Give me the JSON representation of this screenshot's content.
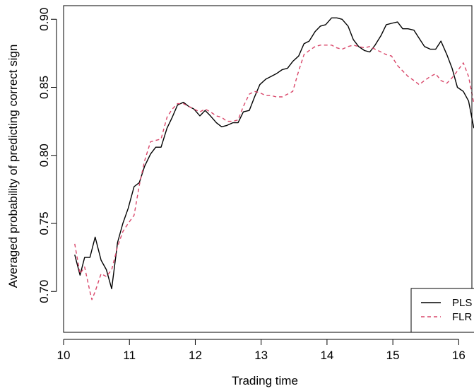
{
  "chart_data": {
    "type": "line",
    "xlabel": "Trading time",
    "ylabel": "Averaged probability of predicting correct sign",
    "xlim": [
      10,
      16.2
    ],
    "ylim": [
      0.67,
      0.91
    ],
    "xticks": [
      10,
      11,
      12,
      13,
      14,
      15,
      16
    ],
    "xtick_labels": [
      "10",
      "11",
      "12",
      "13",
      "14",
      "15",
      "16"
    ],
    "yticks": [
      0.7,
      0.75,
      0.8,
      0.85,
      0.9
    ],
    "ytick_labels": [
      "0.70",
      "0.75",
      "0.80",
      "0.85",
      "0.90"
    ],
    "legend": {
      "placement": "bottom-right"
    },
    "series": [
      {
        "name": "PLS",
        "color": "#000000",
        "dash": "solid",
        "points": [
          [
            10.17,
            0.727
          ],
          [
            10.25,
            0.712
          ],
          [
            10.32,
            0.725
          ],
          [
            10.4,
            0.725
          ],
          [
            10.48,
            0.74
          ],
          [
            10.57,
            0.723
          ],
          [
            10.65,
            0.716
          ],
          [
            10.73,
            0.702
          ],
          [
            10.82,
            0.736
          ],
          [
            10.9,
            0.75
          ],
          [
            10.98,
            0.761
          ],
          [
            11.07,
            0.777
          ],
          [
            11.15,
            0.78
          ],
          [
            11.23,
            0.792
          ],
          [
            11.32,
            0.801
          ],
          [
            11.4,
            0.806
          ],
          [
            11.48,
            0.806
          ],
          [
            11.57,
            0.82
          ],
          [
            11.65,
            0.828
          ],
          [
            11.73,
            0.837
          ],
          [
            11.82,
            0.839
          ],
          [
            11.9,
            0.836
          ],
          [
            11.98,
            0.834
          ],
          [
            12.07,
            0.829
          ],
          [
            12.15,
            0.833
          ],
          [
            12.23,
            0.829
          ],
          [
            12.32,
            0.824
          ],
          [
            12.4,
            0.821
          ],
          [
            12.48,
            0.822
          ],
          [
            12.57,
            0.824
          ],
          [
            12.65,
            0.824
          ],
          [
            12.73,
            0.832
          ],
          [
            12.82,
            0.833
          ],
          [
            12.9,
            0.843
          ],
          [
            12.98,
            0.852
          ],
          [
            13.07,
            0.856
          ],
          [
            13.15,
            0.858
          ],
          [
            13.23,
            0.86
          ],
          [
            13.32,
            0.863
          ],
          [
            13.4,
            0.864
          ],
          [
            13.48,
            0.869
          ],
          [
            13.57,
            0.873
          ],
          [
            13.65,
            0.882
          ],
          [
            13.73,
            0.884
          ],
          [
            13.82,
            0.891
          ],
          [
            13.9,
            0.895
          ],
          [
            13.98,
            0.896
          ],
          [
            14.07,
            0.901
          ],
          [
            14.15,
            0.901
          ],
          [
            14.23,
            0.9
          ],
          [
            14.32,
            0.895
          ],
          [
            14.4,
            0.885
          ],
          [
            14.48,
            0.88
          ],
          [
            14.57,
            0.877
          ],
          [
            14.65,
            0.876
          ],
          [
            14.73,
            0.881
          ],
          [
            14.82,
            0.888
          ],
          [
            14.9,
            0.896
          ],
          [
            14.98,
            0.897
          ],
          [
            15.07,
            0.898
          ],
          [
            15.15,
            0.893
          ],
          [
            15.23,
            0.893
          ],
          [
            15.32,
            0.892
          ],
          [
            15.4,
            0.886
          ],
          [
            15.48,
            0.88
          ],
          [
            15.57,
            0.878
          ],
          [
            15.65,
            0.878
          ],
          [
            15.73,
            0.884
          ],
          [
            15.82,
            0.874
          ],
          [
            15.9,
            0.864
          ],
          [
            15.98,
            0.85
          ],
          [
            16.07,
            0.847
          ],
          [
            16.15,
            0.84
          ],
          [
            16.23,
            0.82
          ]
        ]
      },
      {
        "name": "FLR",
        "color": "#d9476a",
        "dash": "dashed",
        "points": [
          [
            10.17,
            0.735
          ],
          [
            10.25,
            0.713
          ],
          [
            10.32,
            0.718
          ],
          [
            10.4,
            0.7
          ],
          [
            10.43,
            0.694
          ],
          [
            10.48,
            0.7
          ],
          [
            10.57,
            0.713
          ],
          [
            10.65,
            0.711
          ],
          [
            10.73,
            0.716
          ],
          [
            10.82,
            0.733
          ],
          [
            10.9,
            0.744
          ],
          [
            10.98,
            0.75
          ],
          [
            11.07,
            0.756
          ],
          [
            11.15,
            0.778
          ],
          [
            11.23,
            0.796
          ],
          [
            11.32,
            0.81
          ],
          [
            11.4,
            0.811
          ],
          [
            11.48,
            0.812
          ],
          [
            11.57,
            0.828
          ],
          [
            11.65,
            0.834
          ],
          [
            11.73,
            0.838
          ],
          [
            11.82,
            0.838
          ],
          [
            11.9,
            0.836
          ],
          [
            11.98,
            0.834
          ],
          [
            12.07,
            0.832
          ],
          [
            12.15,
            0.834
          ],
          [
            12.23,
            0.832
          ],
          [
            12.32,
            0.829
          ],
          [
            12.4,
            0.828
          ],
          [
            12.48,
            0.825
          ],
          [
            12.57,
            0.825
          ],
          [
            12.65,
            0.826
          ],
          [
            12.73,
            0.836
          ],
          [
            12.82,
            0.845
          ],
          [
            12.9,
            0.847
          ],
          [
            12.98,
            0.846
          ],
          [
            13.07,
            0.844
          ],
          [
            13.15,
            0.844
          ],
          [
            13.23,
            0.843
          ],
          [
            13.32,
            0.843
          ],
          [
            13.4,
            0.845
          ],
          [
            13.48,
            0.847
          ],
          [
            13.57,
            0.862
          ],
          [
            13.65,
            0.874
          ],
          [
            13.73,
            0.877
          ],
          [
            13.82,
            0.88
          ],
          [
            13.9,
            0.881
          ],
          [
            13.98,
            0.881
          ],
          [
            14.07,
            0.881
          ],
          [
            14.15,
            0.879
          ],
          [
            14.23,
            0.878
          ],
          [
            14.32,
            0.88
          ],
          [
            14.4,
            0.881
          ],
          [
            14.48,
            0.88
          ],
          [
            14.57,
            0.879
          ],
          [
            14.65,
            0.88
          ],
          [
            14.73,
            0.878
          ],
          [
            14.82,
            0.876
          ],
          [
            14.9,
            0.874
          ],
          [
            14.98,
            0.873
          ],
          [
            15.07,
            0.866
          ],
          [
            15.15,
            0.862
          ],
          [
            15.23,
            0.858
          ],
          [
            15.32,
            0.855
          ],
          [
            15.4,
            0.852
          ],
          [
            15.48,
            0.855
          ],
          [
            15.57,
            0.858
          ],
          [
            15.65,
            0.86
          ],
          [
            15.73,
            0.855
          ],
          [
            15.82,
            0.853
          ],
          [
            15.9,
            0.857
          ],
          [
            15.98,
            0.862
          ],
          [
            16.07,
            0.868
          ],
          [
            16.15,
            0.858
          ],
          [
            16.23,
            0.838
          ]
        ]
      }
    ]
  }
}
